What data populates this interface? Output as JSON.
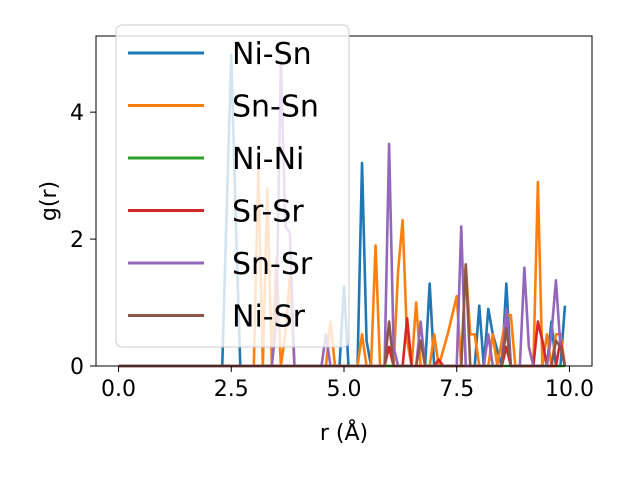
{
  "chart_data": {
    "type": "line",
    "xlabel": "r (Å)",
    "ylabel": "g(r)",
    "xlim": [
      -0.5,
      10.5
    ],
    "ylim": [
      0,
      5.2
    ],
    "xticks": [
      0.0,
      2.5,
      5.0,
      7.5,
      10.0
    ],
    "xtick_labels": [
      "0.0",
      "2.5",
      "5.0",
      "7.5",
      "10.0"
    ],
    "yticks": [
      0,
      2,
      4
    ],
    "ytick_labels": [
      "0",
      "2",
      "4"
    ],
    "grid": false,
    "legend_position": "top-left",
    "series": [
      {
        "name": "Ni-Sn",
        "color": "#1f77b4",
        "points": [
          [
            0,
            0
          ],
          [
            2.3,
            0
          ],
          [
            2.4,
            2.5
          ],
          [
            2.5,
            4.9
          ],
          [
            2.6,
            2.3
          ],
          [
            2.7,
            0
          ],
          [
            4.9,
            0
          ],
          [
            5.0,
            1.25
          ],
          [
            5.1,
            0
          ],
          [
            5.3,
            0
          ],
          [
            5.4,
            3.2
          ],
          [
            5.5,
            0.4
          ],
          [
            5.6,
            0
          ],
          [
            6.8,
            0
          ],
          [
            6.9,
            1.3
          ],
          [
            7.0,
            0
          ],
          [
            7.9,
            0
          ],
          [
            8.0,
            0.95
          ],
          [
            8.1,
            0
          ],
          [
            8.2,
            0.9
          ],
          [
            8.3,
            0.5
          ],
          [
            8.5,
            0
          ],
          [
            8.6,
            1.3
          ],
          [
            8.7,
            0
          ],
          [
            9.5,
            0
          ],
          [
            9.6,
            0.7
          ],
          [
            9.7,
            0
          ],
          [
            9.8,
            0
          ],
          [
            9.9,
            0.95
          ]
        ]
      },
      {
        "name": "Sn-Sn",
        "color": "#ff7f0e",
        "points": [
          [
            0,
            0
          ],
          [
            3.0,
            0
          ],
          [
            3.1,
            3.1
          ],
          [
            3.2,
            0
          ],
          [
            3.3,
            2.8
          ],
          [
            3.4,
            0
          ],
          [
            3.5,
            1.7
          ],
          [
            3.6,
            0
          ],
          [
            3.7,
            0.5
          ],
          [
            3.8,
            1.4
          ],
          [
            3.9,
            0
          ],
          [
            4.6,
            0
          ],
          [
            4.7,
            0.7
          ],
          [
            4.8,
            0
          ],
          [
            5.3,
            0
          ],
          [
            5.4,
            0.5
          ],
          [
            5.5,
            0
          ],
          [
            5.6,
            0
          ],
          [
            5.7,
            1.9
          ],
          [
            5.8,
            0
          ],
          [
            6.1,
            0
          ],
          [
            6.2,
            1.5
          ],
          [
            6.3,
            2.3
          ],
          [
            6.4,
            0.4
          ],
          [
            6.5,
            0
          ],
          [
            6.6,
            1.0
          ],
          [
            6.7,
            0
          ],
          [
            6.9,
            0
          ],
          [
            7.0,
            0.5
          ],
          [
            7.1,
            0
          ],
          [
            7.3,
            0.5
          ],
          [
            7.5,
            1.1
          ],
          [
            7.6,
            0
          ],
          [
            7.7,
            1.6
          ],
          [
            7.8,
            0.5
          ],
          [
            7.9,
            0.5
          ],
          [
            8.0,
            0
          ],
          [
            8.2,
            0
          ],
          [
            8.3,
            0.5
          ],
          [
            8.4,
            0
          ],
          [
            8.6,
            0.8
          ],
          [
            8.7,
            0.8
          ],
          [
            8.8,
            0
          ],
          [
            9.2,
            0
          ],
          [
            9.3,
            2.9
          ],
          [
            9.4,
            0
          ],
          [
            9.5,
            0.5
          ],
          [
            9.6,
            0
          ],
          [
            9.7,
            0.5
          ],
          [
            9.8,
            0.5
          ],
          [
            9.9,
            0
          ]
        ]
      },
      {
        "name": "Ni-Ni",
        "color": "#2ca02c",
        "points": [
          [
            0,
            0
          ],
          [
            9.9,
            0
          ]
        ]
      },
      {
        "name": "Sr-Sr",
        "color": "#d62728",
        "points": [
          [
            0,
            0
          ],
          [
            5.9,
            0
          ],
          [
            6.0,
            0.3
          ],
          [
            6.1,
            0
          ],
          [
            6.3,
            0
          ],
          [
            6.4,
            0.75
          ],
          [
            6.5,
            0
          ],
          [
            7.0,
            0
          ],
          [
            7.1,
            0.1
          ],
          [
            7.2,
            0
          ],
          [
            8.5,
            0
          ],
          [
            8.6,
            0.3
          ],
          [
            8.7,
            0
          ],
          [
            9.2,
            0
          ],
          [
            9.3,
            0.7
          ],
          [
            9.4,
            0.4
          ],
          [
            9.5,
            0
          ],
          [
            9.7,
            0
          ],
          [
            9.8,
            0.4
          ],
          [
            9.9,
            0
          ]
        ]
      },
      {
        "name": "Sn-Sr",
        "color": "#9467bd",
        "points": [
          [
            0,
            0
          ],
          [
            3.4,
            0
          ],
          [
            3.5,
            0.7
          ],
          [
            3.6,
            4.8
          ],
          [
            3.7,
            2.2
          ],
          [
            3.8,
            2.1
          ],
          [
            3.9,
            0
          ],
          [
            4.5,
            0
          ],
          [
            4.6,
            0.5
          ],
          [
            4.7,
            0
          ],
          [
            5.9,
            0
          ],
          [
            6.0,
            3.5
          ],
          [
            6.1,
            0.3
          ],
          [
            6.2,
            0
          ],
          [
            6.6,
            0
          ],
          [
            6.7,
            0.7
          ],
          [
            6.8,
            0
          ],
          [
            7.5,
            0
          ],
          [
            7.6,
            2.2
          ],
          [
            7.7,
            0
          ],
          [
            8.1,
            0
          ],
          [
            8.2,
            0.5
          ],
          [
            8.3,
            0
          ],
          [
            8.5,
            0
          ],
          [
            8.6,
            0.9
          ],
          [
            8.7,
            0
          ],
          [
            8.9,
            0
          ],
          [
            9.0,
            1.55
          ],
          [
            9.1,
            0.3
          ],
          [
            9.2,
            0
          ],
          [
            9.5,
            0
          ],
          [
            9.6,
            0.5
          ],
          [
            9.7,
            1.35
          ],
          [
            9.8,
            0.3
          ],
          [
            9.9,
            0
          ]
        ]
      },
      {
        "name": "Ni-Sr",
        "color": "#8c564b",
        "points": [
          [
            0,
            0
          ],
          [
            5.9,
            0
          ],
          [
            6.0,
            0.7
          ],
          [
            6.1,
            0
          ],
          [
            6.6,
            0
          ],
          [
            6.7,
            0.4
          ],
          [
            6.8,
            0
          ],
          [
            7.6,
            0
          ],
          [
            7.7,
            1.6
          ],
          [
            7.8,
            0
          ],
          [
            8.5,
            0
          ],
          [
            8.6,
            0.6
          ],
          [
            8.7,
            0
          ],
          [
            9.6,
            0
          ],
          [
            9.7,
            0.4
          ],
          [
            9.8,
            0.3
          ],
          [
            9.9,
            0
          ]
        ]
      }
    ]
  }
}
